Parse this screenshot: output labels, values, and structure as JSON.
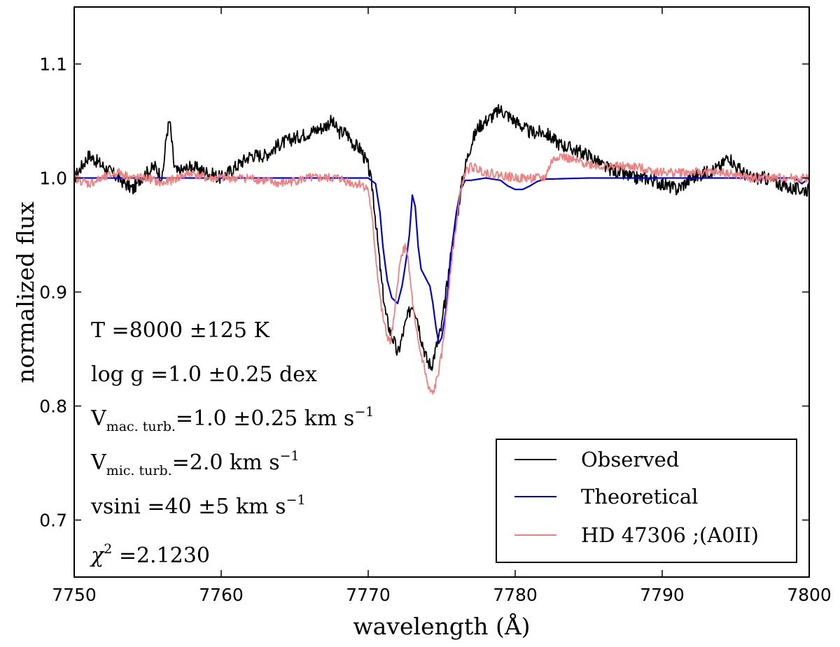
{
  "chart_data": {
    "type": "line",
    "title": "",
    "xlabel": "wavelength (Å)",
    "ylabel": "normalized flux",
    "xlim": [
      7750,
      7800
    ],
    "ylim": [
      0.65,
      1.15
    ],
    "xticks": [
      7750,
      7760,
      7770,
      7780,
      7790,
      7800
    ],
    "xtick_labels": [
      "7750",
      "7760",
      "7770",
      "7780",
      "7790",
      "7800"
    ],
    "yticks": [
      0.7,
      0.8,
      0.9,
      1.0,
      1.1
    ],
    "ytick_labels": [
      "0.7",
      "0.8",
      "0.9",
      "1.0",
      "1.1"
    ],
    "grid": false,
    "legend_position": "lower-right",
    "annotations": {
      "temperature": {
        "main": "T =8000 ±125 K"
      },
      "logg": {
        "main": "log g =1.0 ±0.25 dex"
      },
      "vmac": {
        "main": "V",
        "sub": "mac. turb.",
        "tail": "=1.0 ±0.25 km s",
        "sup": "−1"
      },
      "vmic": {
        "main": "V",
        "sub": "mic. turb.",
        "tail": "=2.0 km s",
        "sup": "−1"
      },
      "vsini": {
        "main": "vsini =40 ±5 km s",
        "sup": "−1"
      },
      "chi2": {
        "main": "χ",
        "sup": "2",
        "tail": " =2.1230"
      }
    },
    "series": [
      {
        "name": "Observed",
        "color": "#000000",
        "x": [
          7750.0,
          7750.5,
          7751.0,
          7752.0,
          7753.0,
          7754.0,
          7754.5,
          7755.0,
          7755.5,
          7756.0,
          7756.3,
          7756.5,
          7756.8,
          7757.0,
          7758.0,
          7759.0,
          7760.0,
          7761.0,
          7762.0,
          7763.0,
          7764.0,
          7765.0,
          7766.0,
          7767.0,
          7767.5,
          7768.0,
          7768.5,
          7769.0,
          7769.5,
          7770.0,
          7770.3,
          7770.6,
          7770.9,
          7771.2,
          7771.5,
          7771.8,
          7772.0,
          7772.3,
          7772.6,
          7773.0,
          7773.3,
          7773.6,
          7774.0,
          7774.3,
          7774.6,
          7775.0,
          7775.3,
          7775.6,
          7776.0,
          7776.3,
          7776.6,
          7777.0,
          7777.5,
          7778.0,
          7778.5,
          7779.0,
          7780.0,
          7781.0,
          7782.0,
          7783.0,
          7784.0,
          7785.0,
          7786.0,
          7787.0,
          7788.0,
          7789.0,
          7790.0,
          7791.0,
          7792.0,
          7793.0,
          7794.0,
          7794.5,
          7795.0,
          7796.0,
          7797.0,
          7798.0,
          7799.0,
          7800.0
        ],
        "values": [
          1.0,
          1.01,
          1.02,
          1.01,
          1.0,
          0.99,
          1.0,
          1.005,
          1.01,
          1.0,
          1.04,
          1.05,
          1.01,
          1.005,
          1.01,
          1.005,
          1.0,
          1.01,
          1.02,
          1.02,
          1.03,
          1.035,
          1.04,
          1.045,
          1.05,
          1.04,
          1.04,
          1.03,
          1.025,
          1.01,
          0.99,
          0.95,
          0.91,
          0.88,
          0.865,
          0.855,
          0.845,
          0.86,
          0.875,
          0.89,
          0.88,
          0.86,
          0.84,
          0.835,
          0.85,
          0.87,
          0.9,
          0.93,
          0.96,
          0.99,
          1.01,
          1.03,
          1.045,
          1.05,
          1.055,
          1.06,
          1.05,
          1.04,
          1.04,
          1.03,
          1.025,
          1.02,
          1.01,
          1.005,
          1.0,
          1.0,
          0.995,
          0.99,
          1.0,
          1.005,
          1.01,
          1.02,
          1.01,
          1.0,
          1.0,
          0.995,
          0.99,
          0.99
        ]
      },
      {
        "name": "Theoretical",
        "color": "#0000dd",
        "x": [
          7750.0,
          7751.0,
          7755.0,
          7760.0,
          7765.0,
          7770.0,
          7770.5,
          7770.8,
          7771.0,
          7771.3,
          7771.6,
          7772.0,
          7772.3,
          7772.6,
          7772.8,
          7773.0,
          7773.2,
          7773.4,
          7773.6,
          7773.8,
          7774.0,
          7774.2,
          7774.4,
          7774.6,
          7774.8,
          7775.0,
          7775.3,
          7775.6,
          7776.0,
          7776.3,
          7776.6,
          7777.0,
          7778.0,
          7779.0,
          7779.5,
          7780.0,
          7780.5,
          7781.0,
          7781.5,
          7782.0,
          7785.0,
          7790.0,
          7795.0,
          7799.0,
          7799.5,
          7800.0
        ],
        "values": [
          1.0,
          1.0,
          1.0,
          1.0,
          1.0,
          1.0,
          0.995,
          0.97,
          0.94,
          0.91,
          0.895,
          0.89,
          0.905,
          0.93,
          0.95,
          0.985,
          0.975,
          0.94,
          0.92,
          0.915,
          0.91,
          0.905,
          0.89,
          0.87,
          0.855,
          0.86,
          0.885,
          0.93,
          0.97,
          0.99,
          0.998,
          0.998,
          1.0,
          0.998,
          0.993,
          0.99,
          0.99,
          0.993,
          0.997,
          0.999,
          1.0,
          1.0,
          1.0,
          1.0,
          0.995,
          1.0
        ]
      },
      {
        "name": "HD 47306 ;(A0II)",
        "color": "#f08080",
        "x": [
          7750.0,
          7751.0,
          7752.0,
          7753.0,
          7754.0,
          7755.0,
          7756.0,
          7757.0,
          7758.0,
          7759.0,
          7760.0,
          7762.0,
          7764.0,
          7766.0,
          7768.0,
          7769.0,
          7769.5,
          7770.0,
          7770.3,
          7770.6,
          7770.9,
          7771.2,
          7771.5,
          7771.8,
          7772.0,
          7772.3,
          7772.6,
          7772.9,
          7773.2,
          7773.5,
          7773.8,
          7774.1,
          7774.4,
          7774.7,
          7775.0,
          7775.3,
          7775.6,
          7776.0,
          7776.3,
          7776.6,
          7777.0,
          7778.0,
          7780.0,
          7782.0,
          7782.5,
          7783.0,
          7784.0,
          7786.0,
          7788.0,
          7790.0,
          7792.0,
          7794.0,
          7796.0,
          7798.0,
          7800.0
        ],
        "values": [
          1.0,
          0.995,
          1.0,
          1.005,
          1.0,
          1.0,
          0.995,
          1.0,
          1.005,
          1.0,
          1.0,
          1.0,
          0.995,
          1.0,
          1.0,
          0.995,
          0.995,
          0.99,
          0.96,
          0.92,
          0.885,
          0.865,
          0.855,
          0.88,
          0.91,
          0.935,
          0.94,
          0.905,
          0.87,
          0.85,
          0.835,
          0.815,
          0.81,
          0.825,
          0.845,
          0.88,
          0.92,
          0.96,
          0.99,
          1.005,
          1.01,
          1.005,
          1.0,
          1.0,
          1.015,
          1.02,
          1.015,
          1.01,
          1.01,
          1.005,
          1.005,
          1.005,
          1.0,
          1.0,
          1.0
        ]
      }
    ]
  }
}
